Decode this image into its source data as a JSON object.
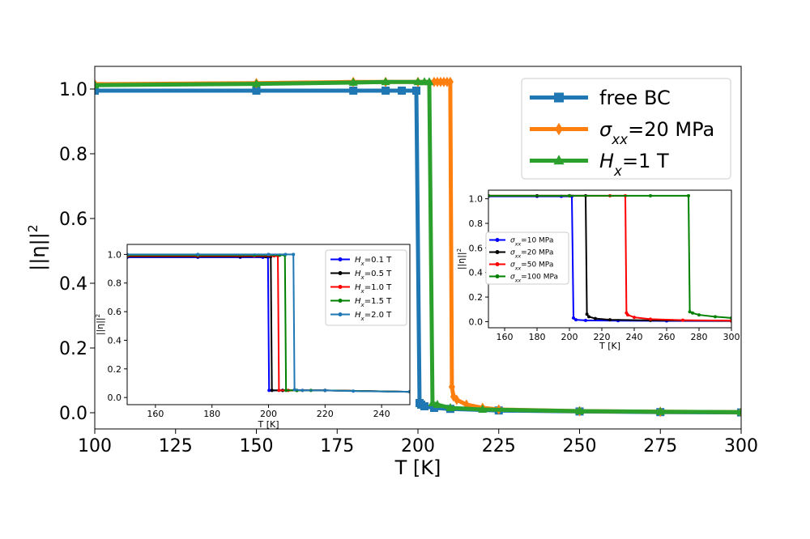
{
  "chart_data": [
    {
      "id": "main",
      "type": "line",
      "title": "",
      "xlabel": "T [K]",
      "ylabel_base": "||η||",
      "ylabel_sup": "2",
      "xlim": [
        100,
        300
      ],
      "ylim": [
        -0.05,
        1.07
      ],
      "xticks": [
        100,
        125,
        150,
        175,
        200,
        225,
        250,
        275,
        300
      ],
      "yticks": [
        0.0,
        0.2,
        0.4,
        0.6,
        0.8,
        1.0
      ],
      "yticklabels": [
        "0.0",
        "0.2",
        "0.4",
        "0.6",
        "0.8",
        "1.0"
      ],
      "legend_position": "top-right",
      "series": [
        {
          "name": "free BC",
          "label_parts": [
            {
              "t": "free BC"
            }
          ],
          "color": "#1f77b4",
          "marker": "square",
          "x": [
            100,
            150,
            180,
            190,
            195,
            199.5,
            200.5,
            201,
            202,
            205,
            210,
            225,
            250,
            275,
            300
          ],
          "y": [
            0.995,
            0.995,
            0.995,
            0.995,
            0.995,
            0.995,
            0.03,
            0.025,
            0.02,
            0.015,
            0.012,
            0.007,
            0.004,
            0.002,
            0.001
          ]
        },
        {
          "name": "σxx=20 MPa",
          "label_parts": [
            {
              "t": "σ",
              "i": true
            },
            {
              "t": "xx",
              "sub": true,
              "i": true
            },
            {
              "t": "=20 MPa"
            }
          ],
          "color": "#ff7f0e",
          "marker": "diamond",
          "x": [
            100,
            150,
            180,
            190,
            200,
            205,
            206,
            207,
            208,
            209,
            210,
            210.5,
            211,
            212,
            215,
            220,
            225,
            250,
            275,
            300
          ],
          "y": [
            1.015,
            1.018,
            1.022,
            1.022,
            1.022,
            1.022,
            1.022,
            1.022,
            1.022,
            1.022,
            1.022,
            0.08,
            0.05,
            0.04,
            0.025,
            0.015,
            0.01,
            0.005,
            0.003,
            0.002
          ]
        },
        {
          "name": "Hx=1 T",
          "label_parts": [
            {
              "t": "H",
              "i": true
            },
            {
              "t": "x",
              "sub": true,
              "i": true
            },
            {
              "t": "=1 T"
            }
          ],
          "color": "#2ca02c",
          "marker": "triangle",
          "x": [
            100,
            150,
            180,
            190,
            200,
            202,
            203.5,
            204.5,
            206,
            210,
            220,
            250,
            275,
            300
          ],
          "y": [
            1.012,
            1.016,
            1.02,
            1.022,
            1.022,
            1.022,
            1.022,
            0.03,
            0.025,
            0.015,
            0.01,
            0.005,
            0.003,
            0.002
          ]
        }
      ]
    },
    {
      "id": "inset-left",
      "type": "line",
      "xlabel": "T [K]",
      "ylabel_base": "||η||",
      "ylabel_sup": "2",
      "xlim": [
        150,
        250
      ],
      "ylim": [
        -0.05,
        1.07
      ],
      "xticks": [
        160,
        180,
        200,
        220,
        240
      ],
      "yticks": [
        0.0,
        0.2,
        0.4,
        0.6,
        0.8,
        1.0
      ],
      "yticklabels": [
        "0.0",
        "0.2",
        "0.4",
        "0.6",
        "0.8",
        "1.0"
      ],
      "legend_position": "top-right",
      "series": [
        {
          "name": "Hx=0.1 T",
          "label_parts": [
            {
              "t": "H",
              "i": true
            },
            {
              "t": "x",
              "sub": true,
              "i": true
            },
            {
              "t": "=0.1 T"
            }
          ],
          "color": "#0000ff",
          "x": [
            150,
            175,
            190,
            198,
            199.8,
            200.2,
            205,
            210,
            220,
            250
          ],
          "y": [
            0.98,
            0.98,
            0.98,
            0.98,
            0.98,
            0.05,
            0.05,
            0.05,
            0.05,
            0.04
          ]
        },
        {
          "name": "Hx=0.5 T",
          "label_parts": [
            {
              "t": "H",
              "i": true
            },
            {
              "t": "x",
              "sub": true,
              "i": true
            },
            {
              "t": "=0.5 T"
            }
          ],
          "color": "#000000",
          "x": [
            150,
            175,
            190,
            199,
            200.8,
            201.2,
            205,
            210,
            220,
            250
          ],
          "y": [
            0.985,
            0.985,
            0.985,
            0.985,
            0.985,
            0.05,
            0.05,
            0.05,
            0.05,
            0.04
          ]
        },
        {
          "name": "Hx=1.0 T",
          "label_parts": [
            {
              "t": "H",
              "i": true
            },
            {
              "t": "x",
              "sub": true,
              "i": true
            },
            {
              "t": "=1.0 T"
            }
          ],
          "color": "#ff0000",
          "x": [
            150,
            175,
            195,
            202,
            203.3,
            203.7,
            207,
            212,
            220,
            250
          ],
          "y": [
            0.99,
            0.99,
            0.99,
            0.99,
            0.99,
            0.05,
            0.05,
            0.05,
            0.05,
            0.04
          ]
        },
        {
          "name": "Hx=1.5 T",
          "label_parts": [
            {
              "t": "H",
              "i": true
            },
            {
              "t": "x",
              "sub": true,
              "i": true
            },
            {
              "t": "=1.5 T"
            }
          ],
          "color": "#008000",
          "x": [
            150,
            175,
            195,
            204,
            205.8,
            206.2,
            210,
            215,
            220,
            250
          ],
          "y": [
            0.995,
            0.995,
            0.995,
            0.995,
            0.995,
            0.05,
            0.05,
            0.05,
            0.05,
            0.04
          ]
        },
        {
          "name": "Hx=2.0 T",
          "label_parts": [
            {
              "t": "H",
              "i": true
            },
            {
              "t": "x",
              "sub": true,
              "i": true
            },
            {
              "t": "=2.0 T"
            }
          ],
          "color": "#1f77b4",
          "x": [
            150,
            175,
            200,
            206,
            208.8,
            209.2,
            212,
            220,
            230,
            250
          ],
          "y": [
            1.0,
            1.0,
            1.0,
            1.0,
            1.0,
            0.055,
            0.05,
            0.05,
            0.045,
            0.04
          ]
        }
      ]
    },
    {
      "id": "inset-right",
      "type": "line",
      "xlabel": "T [K]",
      "ylabel_base": "||η||",
      "ylabel_sup": "2",
      "xlim": [
        150,
        300
      ],
      "ylim": [
        -0.05,
        1.07
      ],
      "xticks": [
        160,
        180,
        200,
        220,
        240,
        260,
        280,
        300
      ],
      "yticks": [
        0.0,
        0.2,
        0.4,
        0.6,
        0.8,
        1.0
      ],
      "yticklabels": [
        "0.0",
        "0.2",
        "0.4",
        "0.6",
        "0.8",
        "1.0"
      ],
      "legend_position": "center-left",
      "series": [
        {
          "name": "σxx=10 MPa",
          "label_parts": [
            {
              "t": "σ",
              "i": true
            },
            {
              "t": "xx",
              "sub": true,
              "i": true
            },
            {
              "t": "=10 MPa"
            }
          ],
          "color": "#0000ff",
          "x": [
            150,
            180,
            195,
            201.5,
            202.5,
            204,
            210,
            230,
            260,
            300
          ],
          "y": [
            1.02,
            1.02,
            1.02,
            1.02,
            0.03,
            0.015,
            0.01,
            0.008,
            0.006,
            0.005
          ]
        },
        {
          "name": "σxx=20 MPa",
          "label_parts": [
            {
              "t": "σ",
              "i": true
            },
            {
              "t": "xx",
              "sub": true,
              "i": true
            },
            {
              "t": "=20 MPa"
            }
          ],
          "color": "#000000",
          "x": [
            150,
            180,
            200,
            210,
            210.8,
            212,
            216,
            225,
            250,
            300
          ],
          "y": [
            1.025,
            1.025,
            1.025,
            1.025,
            0.06,
            0.04,
            0.025,
            0.015,
            0.01,
            0.006
          ]
        },
        {
          "name": "σxx=50 MPa",
          "label_parts": [
            {
              "t": "σ",
              "i": true
            },
            {
              "t": "xx",
              "sub": true,
              "i": true
            },
            {
              "t": "=50 MPa"
            }
          ],
          "color": "#ff0000",
          "x": [
            150,
            200,
            225,
            234.5,
            235.2,
            236,
            240,
            250,
            270,
            300
          ],
          "y": [
            1.025,
            1.025,
            1.025,
            1.025,
            0.07,
            0.055,
            0.035,
            0.02,
            0.012,
            0.008
          ]
        },
        {
          "name": "σxx=100 MPa",
          "label_parts": [
            {
              "t": "σ",
              "i": true
            },
            {
              "t": "xx",
              "sub": true,
              "i": true
            },
            {
              "t": "=100 MPa"
            }
          ],
          "color": "#008000",
          "x": [
            150,
            200,
            250,
            273.5,
            274.3,
            276,
            280,
            290,
            300
          ],
          "y": [
            1.025,
            1.025,
            1.025,
            1.025,
            0.08,
            0.07,
            0.055,
            0.04,
            0.03
          ]
        }
      ]
    }
  ]
}
